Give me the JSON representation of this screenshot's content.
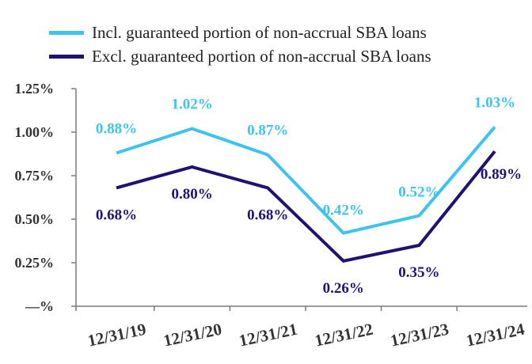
{
  "chart_data": {
    "type": "line",
    "title": "",
    "xlabel": "",
    "ylabel": "",
    "categories": [
      "12/31/19",
      "12/31/20",
      "12/31/21",
      "12/31/22",
      "12/31/23",
      "12/31/24"
    ],
    "ylim": [
      0,
      1.25
    ],
    "yticks": [
      {
        "value": 0,
        "label": "—%"
      },
      {
        "value": 0.25,
        "label": "0.25%"
      },
      {
        "value": 0.5,
        "label": "0.50%"
      },
      {
        "value": 0.75,
        "label": "0.75%"
      },
      {
        "value": 1.0,
        "label": "1.00%"
      },
      {
        "value": 1.25,
        "label": "1.25%"
      }
    ],
    "grid": false,
    "legend_position": "top-left",
    "series": [
      {
        "name": "Incl. guaranteed portion of non-accrual SBA loans",
        "color": "#3ec3ef",
        "values": [
          0.88,
          1.02,
          0.87,
          0.42,
          0.52,
          1.03
        ],
        "labels": [
          "0.88%",
          "1.02%",
          "0.87%",
          "0.42%",
          "0.52%",
          "1.03%"
        ]
      },
      {
        "name": "Excl. guaranteed portion of non-accrual SBA loans",
        "color": "#231073",
        "values": [
          0.68,
          0.8,
          0.68,
          0.26,
          0.35,
          0.89
        ],
        "labels": [
          "0.68%",
          "0.80%",
          "0.68%",
          "0.26%",
          "0.35%",
          "0.89%"
        ]
      }
    ]
  }
}
